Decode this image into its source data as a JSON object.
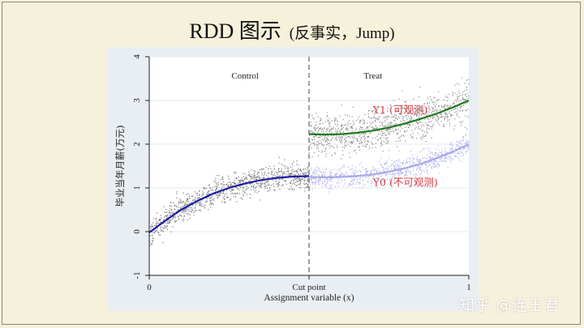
{
  "slide": {
    "title": "RDD 图示",
    "subtitle": "(反事实，Jump)",
    "watermark": "知乎 @连玉君"
  },
  "chart_data": {
    "type": "scatter",
    "title": "",
    "xlabel": "Assignment variable (x)",
    "ylabel": "毕业当年月薪(万元)",
    "xlim": [
      0,
      1
    ],
    "ylim": [
      -1,
      4
    ],
    "x_ticks": [
      0,
      0.5,
      1
    ],
    "x_tick_labels": [
      "0",
      "Cut point",
      "1"
    ],
    "y_ticks": [
      -1,
      0,
      1,
      2,
      3,
      4
    ],
    "y_tick_labels": [
      "-1",
      "0",
      "1",
      "2",
      "3",
      "4"
    ],
    "grid": true,
    "cutoff": 0.5,
    "region_labels": [
      {
        "text": "Control",
        "x": 0.3,
        "y": 3.5
      },
      {
        "text": "Treat",
        "x": 0.7,
        "y": 3.5
      }
    ],
    "series": [
      {
        "name": "Control fit",
        "kind": "line",
        "color": "#1a1aa6",
        "x": [
          0,
          0.05,
          0.1,
          0.15,
          0.2,
          0.25,
          0.3,
          0.35,
          0.4,
          0.45,
          0.5
        ],
        "y": [
          -0.02,
          0.25,
          0.5,
          0.7,
          0.87,
          1.0,
          1.1,
          1.18,
          1.23,
          1.26,
          1.27
        ]
      },
      {
        "name": "Y1 (可观测)",
        "kind": "line",
        "color": "#1f7a1f",
        "x": [
          0.5,
          0.55,
          0.6,
          0.65,
          0.7,
          0.75,
          0.8,
          0.85,
          0.9,
          0.95,
          1.0
        ],
        "y": [
          2.23,
          2.22,
          2.23,
          2.26,
          2.31,
          2.38,
          2.47,
          2.58,
          2.7,
          2.84,
          3.0
        ]
      },
      {
        "name": "Y0 (不可观测)",
        "kind": "line",
        "color": "#a9a9e6",
        "x": [
          0.5,
          0.55,
          0.6,
          0.65,
          0.7,
          0.75,
          0.8,
          0.85,
          0.9,
          0.95,
          1.0
        ],
        "y": [
          1.25,
          1.24,
          1.25,
          1.27,
          1.31,
          1.37,
          1.45,
          1.55,
          1.68,
          1.83,
          2.0
        ]
      }
    ],
    "annotations": [
      {
        "text": "Y1 (可观测)",
        "x": 0.7,
        "y": 2.7,
        "color": "#d0383f"
      },
      {
        "text": "Y0 (不可观测)",
        "x": 0.7,
        "y": 1.05,
        "color": "#d0383f"
      }
    ],
    "scatter_groups": [
      {
        "name": "control",
        "x_range": [
          0,
          0.5
        ],
        "base": "Control fit",
        "spread": 0.28,
        "count": 950,
        "color": "#7a7a7a"
      },
      {
        "name": "treat_y1",
        "x_range": [
          0.5,
          1
        ],
        "base": "Y1 (可观测)",
        "spread": 0.42,
        "count": 1000,
        "color": "#8d8d8d"
      },
      {
        "name": "treat_y0",
        "x_range": [
          0.5,
          1
        ],
        "base": "Y0 (不可观测)",
        "spread": 0.24,
        "count": 850,
        "color": "#b4b4ec"
      }
    ]
  }
}
